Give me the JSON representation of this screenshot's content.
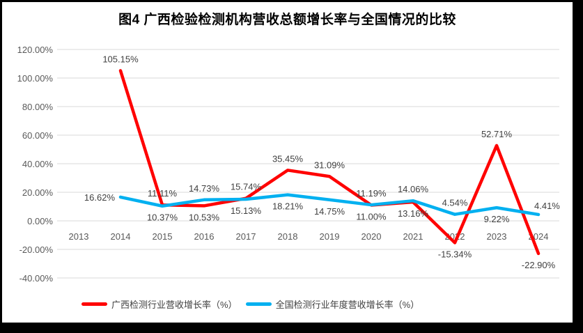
{
  "title": "图4 广西检验检测机构营收总额增长率与全国情况的比较",
  "chart_data": {
    "type": "line",
    "title": "图4 广西检验检测机构营收总额增长率与全国情况的比较",
    "categories": [
      "2013",
      "2014",
      "2015",
      "2016",
      "2017",
      "2018",
      "2019",
      "2020",
      "2021",
      "2022",
      "2023",
      "2024"
    ],
    "series": [
      {
        "name": "广西检测行业营收增长率（%）",
        "color": "#ff0000",
        "values": [
          null,
          105.15,
          11.11,
          10.53,
          15.74,
          35.45,
          31.09,
          11.0,
          13.16,
          -15.34,
          52.71,
          -22.9
        ],
        "labels": [
          null,
          "105.15%",
          "11.11%",
          "10.53%",
          "15.74%",
          "35.45%",
          "31.09%",
          "11.00%",
          "13.16%",
          "-15.34%",
          "52.71%",
          "-22.90%"
        ],
        "label_positions": [
          null,
          "above",
          "above",
          "below",
          "above",
          "above",
          "above",
          "below",
          "below",
          "below",
          "above",
          "below"
        ]
      },
      {
        "name": "全国检测行业年度营收增长率（%）",
        "color": "#00b0f0",
        "values": [
          null,
          16.62,
          10.37,
          14.73,
          15.13,
          18.21,
          14.75,
          11.19,
          14.06,
          4.54,
          9.22,
          4.41
        ],
        "labels": [
          null,
          "16.62%",
          "10.37%",
          "14.73%",
          "15.13%",
          "18.21%",
          "14.75%",
          "11.19%",
          "14.06%",
          "4.54%",
          "9.22%",
          "4.41%"
        ],
        "label_positions": [
          null,
          "left",
          "below",
          "above",
          "below",
          "below",
          "below",
          "above",
          "above",
          "above",
          "below",
          "right"
        ]
      }
    ],
    "y_axis": {
      "min": -40,
      "max": 120,
      "step": 20,
      "tick_labels": [
        "120.00%",
        "100.00%",
        "80.00%",
        "60.00%",
        "40.00%",
        "20.00%",
        "0.00%",
        "-20.00%",
        "-40.00%"
      ]
    },
    "grid": true,
    "legend_position": "bottom",
    "colors": {
      "gridline": "#d9d9d9",
      "axis_text": "#595959",
      "data_label_text": "#404040",
      "background": "#ffffff",
      "frame_border": "#000000"
    }
  },
  "legend": {
    "items": [
      {
        "label": "广西检测行业营收增长率（%）",
        "color": "#ff0000"
      },
      {
        "label": "全国检测行业年度营收增长率（%）",
        "color": "#00b0f0"
      }
    ]
  }
}
